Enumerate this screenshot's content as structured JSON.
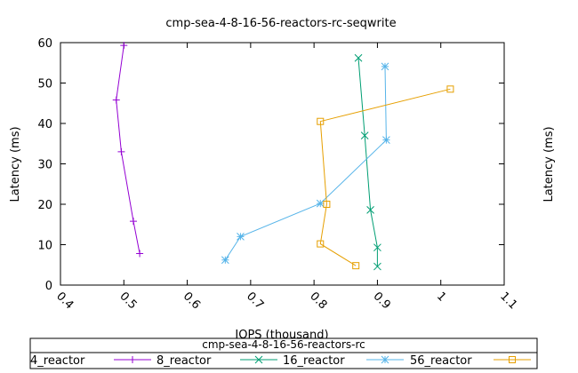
{
  "chart_data": {
    "type": "line",
    "title": "cmp-sea-4-8-16-56-reactors-rc-seqwrite",
    "xlabel": "IOPS (thousand)",
    "ylabel": "Latency (ms)",
    "y2label": "Latency (ms)",
    "xlim": [
      0.4,
      1.1
    ],
    "ylim": [
      0,
      60
    ],
    "xticks": [
      "0.4",
      "0.5",
      "0.6",
      "0.7",
      "0.8",
      "0.9",
      "1",
      "1.1"
    ],
    "yticks": [
      "0",
      "10",
      "20",
      "30",
      "40",
      "50",
      "60"
    ],
    "grid": false,
    "legend": {
      "title": "cmp-sea-4-8-16-56-reactors-rc",
      "placement": "bottom"
    },
    "series": [
      {
        "name": "4_reactor",
        "color": "#9400d3",
        "marker": "plus",
        "x": [
          0.525,
          0.515,
          0.496,
          0.488,
          0.5
        ],
        "y": [
          7.8,
          15.8,
          33.0,
          45.8,
          59.3
        ]
      },
      {
        "name": "8_reactor",
        "color": "#009e73",
        "marker": "cross",
        "x": [
          0.9,
          0.9,
          0.889,
          0.88,
          0.87
        ],
        "y": [
          4.6,
          9.3,
          18.6,
          37.0,
          56.2
        ]
      },
      {
        "name": "16_reactor",
        "color": "#56b4e9",
        "marker": "star",
        "x": [
          0.66,
          0.684,
          0.81,
          0.914,
          0.912
        ],
        "y": [
          6.2,
          12.0,
          20.2,
          35.9,
          54.1
        ]
      },
      {
        "name": "56_reactor",
        "color": "#e69f00",
        "marker": "square",
        "x": [
          0.866,
          0.81,
          0.82,
          0.81,
          1.015
        ],
        "y": [
          4.8,
          10.2,
          20.0,
          40.5,
          48.5
        ]
      }
    ]
  }
}
